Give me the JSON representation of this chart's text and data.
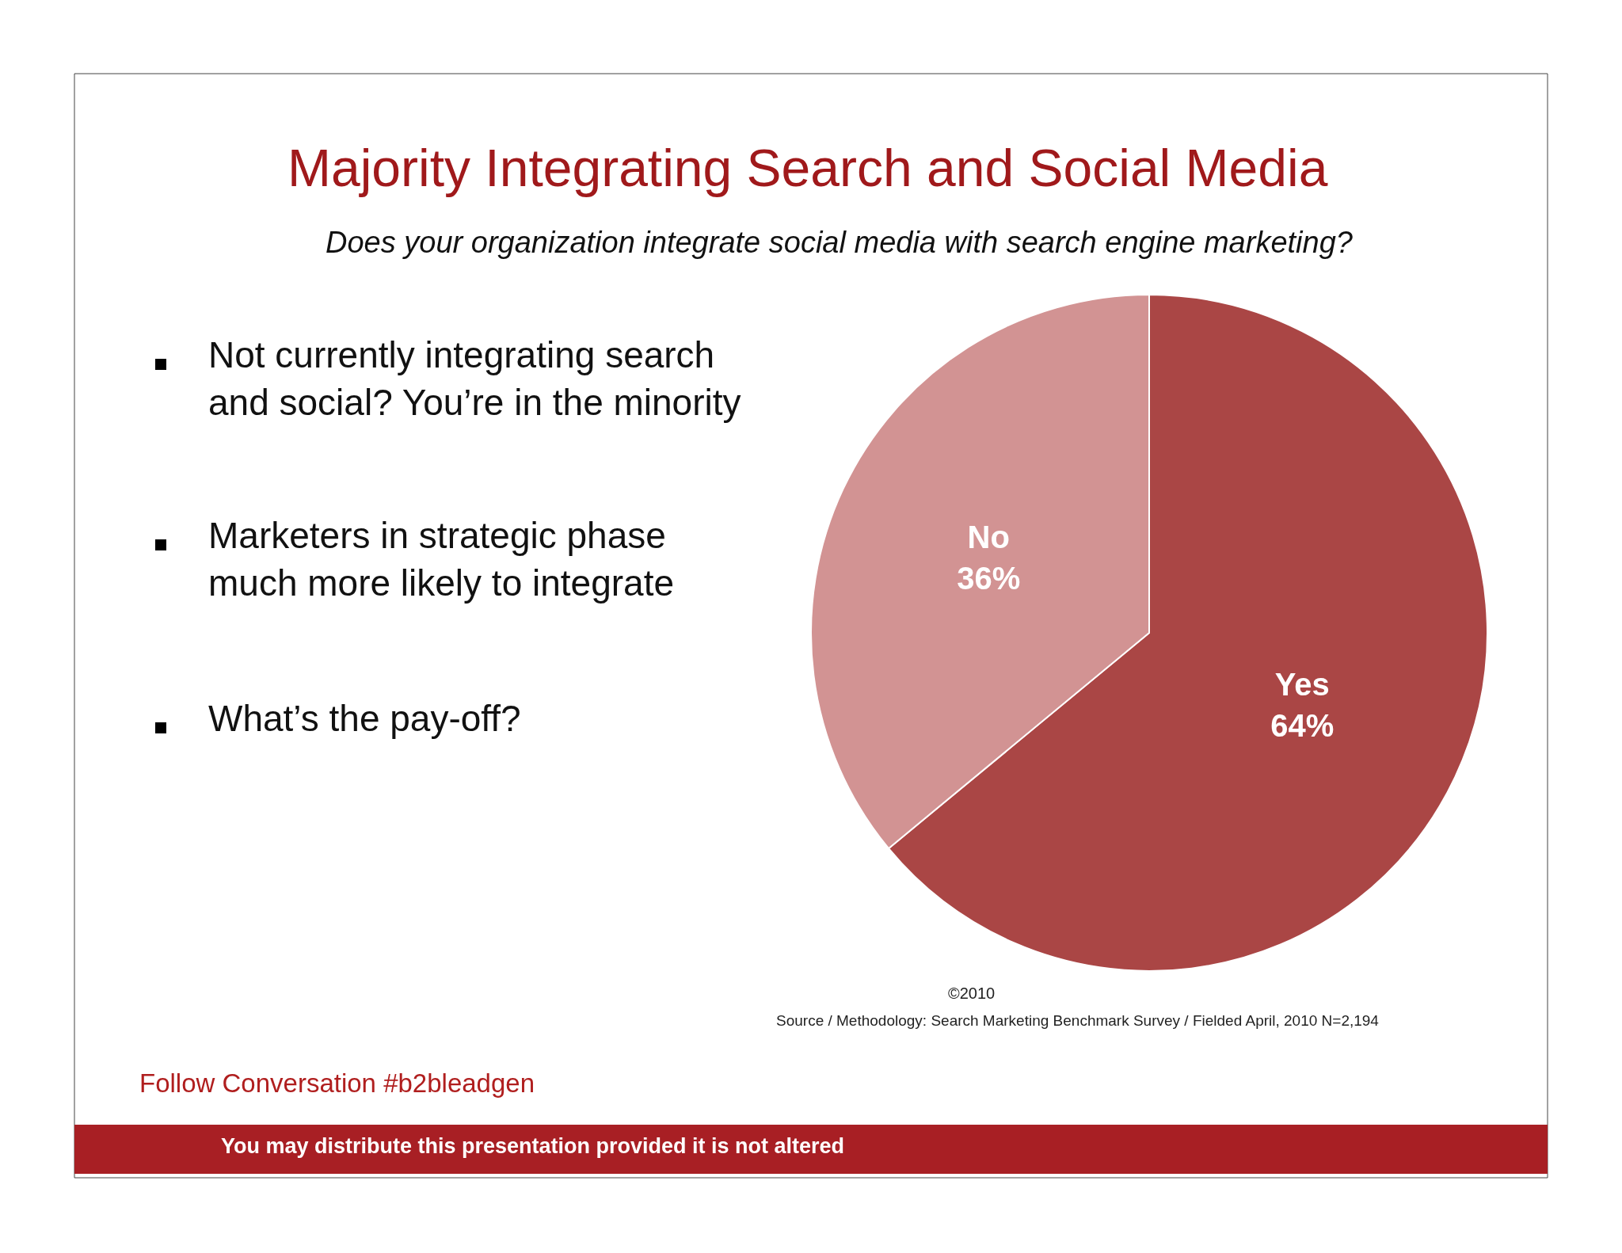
{
  "chart_data": {
    "type": "pie",
    "title": "Majority Integrating Search and Social Media",
    "subtitle": "Does your organization integrate social media with search engine marketing?",
    "categories": [
      "Yes",
      "No"
    ],
    "values": [
      64,
      36
    ],
    "colors": [
      "#aa4645",
      "#d29393"
    ],
    "value_labels": [
      "64%",
      "36%"
    ],
    "legend": false,
    "annotations": [
      "Not currently integrating search\nand social? You’re in the minority",
      "Marketers in strategic phase\nmuch more likely to integrate",
      "What’s the pay-off?",
      "©2010",
      "Source / Methodology: Search Marketing Benchmark Survey / Fielded April, 2010 N=2,194",
      "Follow Conversation #b2bleadgen",
      "You may distribute this presentation provided it is not altered"
    ]
  }
}
